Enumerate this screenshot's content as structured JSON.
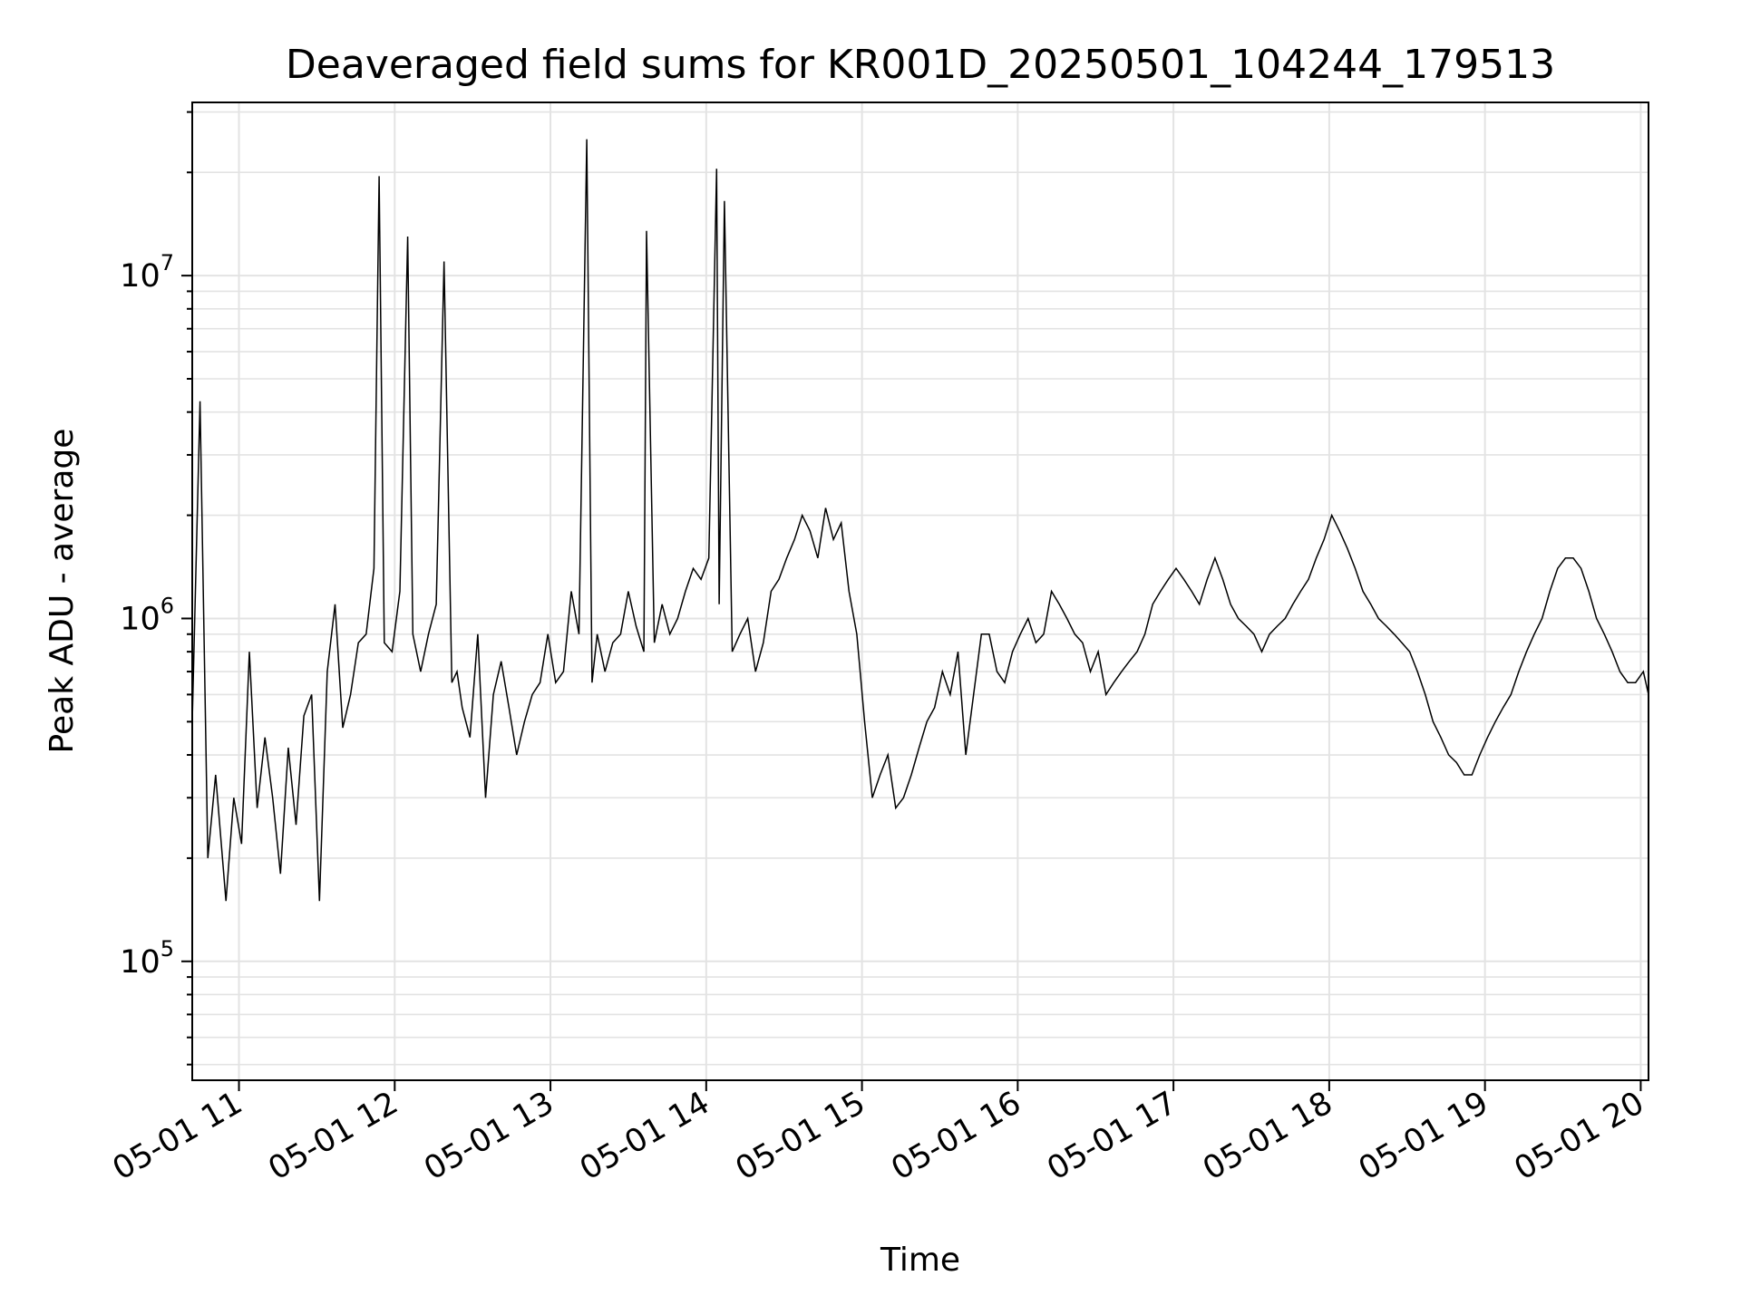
{
  "chart_data": {
    "type": "line",
    "title": "Deaveraged field sums for KR001D_20250501_104244_179513",
    "xlabel": "Time",
    "ylabel": "Peak ADU - average",
    "yscale": "log",
    "ylim": [
      45000,
      32000000
    ],
    "xlim": [
      "2025-05-01 10:42",
      "2025-05-01 20:03"
    ],
    "grid": true,
    "legend": "none",
    "line_color": "#000000",
    "x_ticks": [
      "05-01 11",
      "05-01 12",
      "05-01 13",
      "05-01 14",
      "05-01 15",
      "05-01 16",
      "05-01 17",
      "05-01 18",
      "05-01 19",
      "05-01 20"
    ],
    "y_ticks": [
      {
        "base": "10",
        "exp": "5",
        "value": 100000
      },
      {
        "base": "10",
        "exp": "6",
        "value": 1000000
      },
      {
        "base": "10",
        "exp": "7",
        "value": 10000000
      }
    ],
    "series": [
      {
        "x": [
          "2025-05-01 10:42",
          "2025-05-01 10:45",
          "2025-05-01 10:48",
          "2025-05-01 10:51",
          "2025-05-01 10:55",
          "2025-05-01 10:58",
          "2025-05-01 11:01",
          "2025-05-01 11:04",
          "2025-05-01 11:07",
          "2025-05-01 11:10",
          "2025-05-01 11:13",
          "2025-05-01 11:16",
          "2025-05-01 11:19",
          "2025-05-01 11:22",
          "2025-05-01 11:25",
          "2025-05-01 11:28",
          "2025-05-01 11:31",
          "2025-05-01 11:34",
          "2025-05-01 11:37",
          "2025-05-01 11:40",
          "2025-05-01 11:43",
          "2025-05-01 11:46",
          "2025-05-01 11:49",
          "2025-05-01 11:52",
          "2025-05-01 11:54",
          "2025-05-01 11:56",
          "2025-05-01 11:59",
          "2025-05-01 12:02",
          "2025-05-01 12:05",
          "2025-05-01 12:07",
          "2025-05-01 12:10",
          "2025-05-01 12:13",
          "2025-05-01 12:16",
          "2025-05-01 12:19",
          "2025-05-01 12:22",
          "2025-05-01 12:24",
          "2025-05-01 12:26",
          "2025-05-01 12:29",
          "2025-05-01 12:32",
          "2025-05-01 12:35",
          "2025-05-01 12:38",
          "2025-05-01 12:41",
          "2025-05-01 12:44",
          "2025-05-01 12:47",
          "2025-05-01 12:50",
          "2025-05-01 12:53",
          "2025-05-01 12:56",
          "2025-05-01 12:59",
          "2025-05-01 13:02",
          "2025-05-01 13:05",
          "2025-05-01 13:08",
          "2025-05-01 13:11",
          "2025-05-01 13:14",
          "2025-05-01 13:16",
          "2025-05-01 13:18",
          "2025-05-01 13:21",
          "2025-05-01 13:24",
          "2025-05-01 13:27",
          "2025-05-01 13:30",
          "2025-05-01 13:33",
          "2025-05-01 13:36",
          "2025-05-01 13:37",
          "2025-05-01 13:40",
          "2025-05-01 13:43",
          "2025-05-01 13:46",
          "2025-05-01 13:49",
          "2025-05-01 13:52",
          "2025-05-01 13:55",
          "2025-05-01 13:58",
          "2025-05-01 14:01",
          "2025-05-01 14:04",
          "2025-05-01 14:05",
          "2025-05-01 14:07",
          "2025-05-01 14:10",
          "2025-05-01 14:13",
          "2025-05-01 14:16",
          "2025-05-01 14:19",
          "2025-05-01 14:22",
          "2025-05-01 14:25",
          "2025-05-01 14:28",
          "2025-05-01 14:31",
          "2025-05-01 14:34",
          "2025-05-01 14:37",
          "2025-05-01 14:40",
          "2025-05-01 14:43",
          "2025-05-01 14:46",
          "2025-05-01 14:49",
          "2025-05-01 14:52",
          "2025-05-01 14:55",
          "2025-05-01 14:58",
          "2025-05-01 15:01",
          "2025-05-01 15:04",
          "2025-05-01 15:07",
          "2025-05-01 15:10",
          "2025-05-01 15:13",
          "2025-05-01 15:16",
          "2025-05-01 15:19",
          "2025-05-01 15:22",
          "2025-05-01 15:25",
          "2025-05-01 15:28",
          "2025-05-01 15:31",
          "2025-05-01 15:34",
          "2025-05-01 15:37",
          "2025-05-01 15:40",
          "2025-05-01 15:43",
          "2025-05-01 15:46",
          "2025-05-01 15:49",
          "2025-05-01 15:52",
          "2025-05-01 15:55",
          "2025-05-01 15:58",
          "2025-05-01 16:01",
          "2025-05-01 16:04",
          "2025-05-01 16:07",
          "2025-05-01 16:10",
          "2025-05-01 16:13",
          "2025-05-01 16:16",
          "2025-05-01 16:19",
          "2025-05-01 16:22",
          "2025-05-01 16:25",
          "2025-05-01 16:28",
          "2025-05-01 16:31",
          "2025-05-01 16:34",
          "2025-05-01 16:37",
          "2025-05-01 16:40",
          "2025-05-01 16:43",
          "2025-05-01 16:46",
          "2025-05-01 16:49",
          "2025-05-01 16:52",
          "2025-05-01 16:55",
          "2025-05-01 16:58",
          "2025-05-01 17:01",
          "2025-05-01 17:04",
          "2025-05-01 17:07",
          "2025-05-01 17:10",
          "2025-05-01 17:13",
          "2025-05-01 17:16",
          "2025-05-01 17:19",
          "2025-05-01 17:22",
          "2025-05-01 17:25",
          "2025-05-01 17:28",
          "2025-05-01 17:31",
          "2025-05-01 17:34",
          "2025-05-01 17:37",
          "2025-05-01 17:40",
          "2025-05-01 17:43",
          "2025-05-01 17:46",
          "2025-05-01 17:49",
          "2025-05-01 17:52",
          "2025-05-01 17:55",
          "2025-05-01 17:58",
          "2025-05-01 18:01",
          "2025-05-01 18:04",
          "2025-05-01 18:07",
          "2025-05-01 18:10",
          "2025-05-01 18:13",
          "2025-05-01 18:16",
          "2025-05-01 18:19",
          "2025-05-01 18:22",
          "2025-05-01 18:25",
          "2025-05-01 18:28",
          "2025-05-01 18:31",
          "2025-05-01 18:34",
          "2025-05-01 18:37",
          "2025-05-01 18:40",
          "2025-05-01 18:43",
          "2025-05-01 18:46",
          "2025-05-01 18:49",
          "2025-05-01 18:52",
          "2025-05-01 18:55",
          "2025-05-01 18:58",
          "2025-05-01 19:01",
          "2025-05-01 19:04",
          "2025-05-01 19:07",
          "2025-05-01 19:10",
          "2025-05-01 19:13",
          "2025-05-01 19:16",
          "2025-05-01 19:19",
          "2025-05-01 19:22",
          "2025-05-01 19:25",
          "2025-05-01 19:28",
          "2025-05-01 19:31",
          "2025-05-01 19:34",
          "2025-05-01 19:37",
          "2025-05-01 19:40",
          "2025-05-01 19:43",
          "2025-05-01 19:46",
          "2025-05-01 19:49",
          "2025-05-01 19:52",
          "2025-05-01 19:55",
          "2025-05-01 19:58",
          "2025-05-01 20:01",
          "2025-05-01 20:03"
        ],
        "y": [
          500000,
          4300000,
          200000,
          350000,
          150000,
          300000,
          220000,
          800000,
          280000,
          450000,
          300000,
          180000,
          420000,
          250000,
          520000,
          600000,
          150000,
          700000,
          1100000,
          480000,
          600000,
          850000,
          900000,
          1400000,
          19500000,
          850000,
          800000,
          1200000,
          13000000,
          900000,
          700000,
          900000,
          1100000,
          11000000,
          650000,
          700000,
          550000,
          450000,
          900000,
          300000,
          600000,
          750000,
          550000,
          400000,
          500000,
          600000,
          650000,
          900000,
          650000,
          700000,
          1200000,
          900000,
          25000000,
          650000,
          900000,
          700000,
          850000,
          900000,
          1200000,
          950000,
          800000,
          13500000,
          850000,
          1100000,
          900000,
          1000000,
          1200000,
          1400000,
          1300000,
          1500000,
          20500000,
          1100000,
          16500000,
          800000,
          900000,
          1000000,
          700000,
          850000,
          1200000,
          1300000,
          1500000,
          1700000,
          2000000,
          1800000,
          1500000,
          2100000,
          1700000,
          1900000,
          1200000,
          900000,
          500000,
          300000,
          350000,
          400000,
          280000,
          300000,
          350000,
          420000,
          500000,
          550000,
          700000,
          600000,
          800000,
          400000,
          600000,
          900000,
          900000,
          700000,
          650000,
          800000,
          900000,
          1000000,
          850000,
          900000,
          1200000,
          1100000,
          1000000,
          900000,
          850000,
          700000,
          800000,
          600000,
          650000,
          700000,
          750000,
          800000,
          900000,
          1100000,
          1200000,
          1300000,
          1400000,
          1300000,
          1200000,
          1100000,
          1300000,
          1500000,
          1300000,
          1100000,
          1000000,
          950000,
          900000,
          800000,
          900000,
          950000,
          1000000,
          1100000,
          1200000,
          1300000,
          1500000,
          1700000,
          2000000,
          1800000,
          1600000,
          1400000,
          1200000,
          1100000,
          1000000,
          950000,
          900000,
          850000,
          800000,
          700000,
          600000,
          500000,
          450000,
          400000,
          380000,
          350000,
          350000,
          400000,
          450000,
          500000,
          550000,
          600000,
          700000,
          800000,
          900000,
          1000000,
          1200000,
          1400000,
          1500000,
          1500000,
          1400000,
          1200000,
          1000000,
          900000,
          800000,
          700000,
          650000,
          650000,
          700000,
          600000
        ]
      }
    ]
  }
}
